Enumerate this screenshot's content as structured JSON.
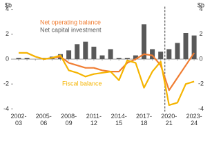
{
  "chart_data": {
    "type": "combo",
    "y_label": "$b",
    "y2_label": "$b",
    "categories": [
      "2002-03",
      null,
      null,
      "2005-06",
      null,
      null,
      "2008-09",
      null,
      null,
      "2011-12",
      null,
      null,
      "2014-15",
      null,
      null,
      "2017-18",
      null,
      null,
      "2020-21",
      null,
      null,
      "2023-24"
    ],
    "ylim": [
      -4,
      4
    ],
    "yticks": [
      -4,
      -2,
      0,
      2,
      4
    ],
    "y2lim": [
      -4,
      4
    ],
    "y2ticks": [
      -4,
      -2,
      0,
      2,
      4
    ],
    "divider_index": 18,
    "series": [
      {
        "name": "Net capital investment",
        "type": "bar",
        "color": "#595959",
        "values": [
          0.1,
          0.1,
          0.0,
          0.1,
          0.2,
          0.4,
          0.7,
          1.2,
          1.4,
          1.0,
          0.3,
          0.8,
          0.1,
          0.1,
          0.3,
          2.8,
          0.8,
          0.6,
          0.8,
          1.3,
          2.1,
          1.9
        ]
      },
      {
        "name": "Net operating balance",
        "type": "line",
        "color": "#f07d32",
        "values": [
          0.5,
          0.5,
          0.2,
          0.0,
          0.1,
          0.2,
          -0.3,
          -0.5,
          -0.7,
          -0.7,
          -0.9,
          -1.0,
          -1.0,
          -0.3,
          0.0,
          0.4,
          0.3,
          -0.5,
          -2.5,
          -1.5,
          -0.5,
          0.5
        ]
      },
      {
        "name": "Fiscal balance",
        "type": "line",
        "color": "#f5b400",
        "values": [
          0.5,
          0.5,
          0.2,
          0.0,
          0.1,
          0.3,
          -0.9,
          -1.1,
          -1.4,
          -1.2,
          -1.1,
          -1.0,
          -1.7,
          -0.1,
          -0.3,
          -2.3,
          -1.0,
          -0.2,
          -3.7,
          -3.5,
          -2.0,
          -1.8
        ]
      }
    ]
  }
}
